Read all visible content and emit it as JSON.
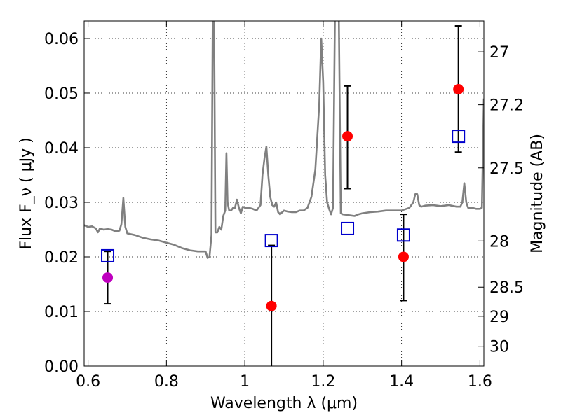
{
  "chart_data": {
    "type": "scatter",
    "title": "",
    "xlabel": "Wavelength  λ (μm)",
    "ylabel": "Flux  F_ν  ( μJy )",
    "ylabel_right": "Magnitude (AB)",
    "xlim": [
      0.59,
      1.61
    ],
    "ylim": [
      0.0,
      0.0632
    ],
    "grid": true,
    "x_ticks": [
      0.6,
      0.8,
      1.0,
      1.2,
      1.4,
      1.6
    ],
    "x_tick_labels": [
      "0.6",
      "0.8",
      "1",
      "1.2",
      "1.4",
      "1.6"
    ],
    "y_ticks": [
      0.0,
      0.01,
      0.02,
      0.03,
      0.04,
      0.05,
      0.06
    ],
    "y_tick_labels": [
      "0.00",
      "0.01",
      "0.02",
      "0.03",
      "0.04",
      "0.05",
      "0.06"
    ],
    "right_axis": {
      "type": "AB magnitude",
      "ticks": [
        27,
        27.2,
        27.5,
        28,
        28.5,
        29,
        30
      ],
      "tick_labels": [
        "27",
        "27.2",
        "27.5",
        "28",
        "28.5",
        "29",
        "30"
      ]
    },
    "series": [
      {
        "kind": "line",
        "color": "#808080",
        "x": [
          0.59,
          0.6,
          0.61,
          0.62,
          0.625,
          0.63,
          0.64,
          0.65,
          0.66,
          0.67,
          0.68,
          0.685,
          0.69,
          0.695,
          0.7,
          0.72,
          0.74,
          0.76,
          0.78,
          0.8,
          0.82,
          0.84,
          0.86,
          0.88,
          0.9,
          0.905,
          0.91,
          0.915,
          0.918,
          0.92,
          0.922,
          0.925,
          0.93,
          0.935,
          0.94,
          0.945,
          0.95,
          0.953,
          0.956,
          0.96,
          0.965,
          0.97,
          0.975,
          0.98,
          0.985,
          0.99,
          0.995,
          1.0,
          1.01,
          1.02,
          1.03,
          1.04,
          1.045,
          1.05,
          1.055,
          1.06,
          1.065,
          1.07,
          1.075,
          1.08,
          1.085,
          1.09,
          1.1,
          1.11,
          1.12,
          1.13,
          1.14,
          1.15,
          1.16,
          1.17,
          1.18,
          1.19,
          1.195,
          1.2,
          1.205,
          1.21,
          1.215,
          1.22,
          1.225,
          1.23,
          1.235,
          1.24,
          1.245,
          1.25,
          1.26,
          1.27,
          1.28,
          1.29,
          1.3,
          1.32,
          1.34,
          1.36,
          1.38,
          1.4,
          1.42,
          1.43,
          1.435,
          1.44,
          1.445,
          1.45,
          1.46,
          1.48,
          1.5,
          1.52,
          1.54,
          1.55,
          1.555,
          1.56,
          1.565,
          1.57,
          1.58,
          1.59,
          1.6,
          1.605,
          1.61
        ],
        "y": [
          0.0258,
          0.0255,
          0.0256,
          0.0252,
          0.0245,
          0.0252,
          0.025,
          0.0251,
          0.025,
          0.0247,
          0.0248,
          0.026,
          0.0308,
          0.0255,
          0.0243,
          0.024,
          0.0235,
          0.0232,
          0.023,
          0.0226,
          0.0222,
          0.0216,
          0.0212,
          0.021,
          0.021,
          0.0198,
          0.02,
          0.024,
          0.062,
          0.064,
          0.06,
          0.0245,
          0.0245,
          0.0255,
          0.025,
          0.0275,
          0.0285,
          0.039,
          0.03,
          0.0285,
          0.0285,
          0.029,
          0.029,
          0.0305,
          0.029,
          0.028,
          0.0292,
          0.029,
          0.029,
          0.0288,
          0.0285,
          0.0295,
          0.035,
          0.038,
          0.0402,
          0.035,
          0.031,
          0.0295,
          0.0292,
          0.03,
          0.0282,
          0.0278,
          0.0285,
          0.0283,
          0.0282,
          0.0282,
          0.0285,
          0.0285,
          0.029,
          0.031,
          0.036,
          0.048,
          0.06,
          0.052,
          0.035,
          0.03,
          0.0288,
          0.0278,
          0.029,
          0.064,
          0.064,
          0.064,
          0.028,
          0.0278,
          0.0277,
          0.0276,
          0.0275,
          0.0278,
          0.028,
          0.0282,
          0.0283,
          0.0285,
          0.0285,
          0.0285,
          0.029,
          0.03,
          0.0315,
          0.0315,
          0.0295,
          0.0292,
          0.0294,
          0.0295,
          0.0293,
          0.0295,
          0.0292,
          0.0292,
          0.03,
          0.0335,
          0.03,
          0.029,
          0.029,
          0.0288,
          0.0288,
          0.029,
          0.049
        ]
      },
      {
        "kind": "filled-marker",
        "color": "#ff0000",
        "points": [
          {
            "x": 1.068,
            "y": 0.011,
            "ylo": 0.0,
            "yhi": 0.0221
          },
          {
            "x": 1.262,
            "y": 0.0421,
            "ylo": 0.0325,
            "yhi": 0.0513
          },
          {
            "x": 1.405,
            "y": 0.02,
            "ylo": 0.012,
            "yhi": 0.0278
          },
          {
            "x": 1.545,
            "y": 0.0507,
            "ylo": 0.0392,
            "yhi": 0.0623
          }
        ]
      },
      {
        "kind": "filled-marker",
        "color": "#bf00bf",
        "points": [
          {
            "x": 0.65,
            "y": 0.0162,
            "ylo": 0.0114,
            "yhi": 0.021
          }
        ]
      },
      {
        "kind": "open-square",
        "color": "#0000cc",
        "points": [
          {
            "x": 0.65,
            "y": 0.0202
          },
          {
            "x": 1.068,
            "y": 0.023
          },
          {
            "x": 1.262,
            "y": 0.0252
          },
          {
            "x": 1.405,
            "y": 0.024
          },
          {
            "x": 1.545,
            "y": 0.0421
          }
        ]
      }
    ]
  }
}
